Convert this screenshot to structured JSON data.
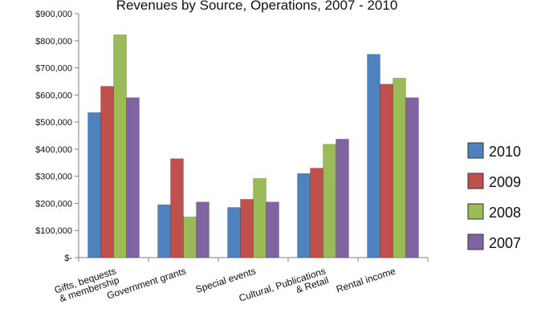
{
  "chart_data": {
    "type": "bar",
    "title": "Revenues by Source, Operations, 2007 - 2010",
    "xlabel": "",
    "ylabel": "",
    "ylim": [
      0,
      900000
    ],
    "y_ticks": [
      {
        "value": 0,
        "label": "$-"
      },
      {
        "value": 100000,
        "label": "$100,000"
      },
      {
        "value": 200000,
        "label": "$200,000"
      },
      {
        "value": 300000,
        "label": "$300,000"
      },
      {
        "value": 400000,
        "label": "$400,000"
      },
      {
        "value": 500000,
        "label": "$500,000"
      },
      {
        "value": 600000,
        "label": "$600,000"
      },
      {
        "value": 700000,
        "label": "$700,000"
      },
      {
        "value": 800000,
        "label": "$800,000"
      },
      {
        "value": 900000,
        "label": "$900,000"
      }
    ],
    "categories": [
      [
        "Gifts, bequests",
        "& membership"
      ],
      [
        "Government grants"
      ],
      [
        "Special events"
      ],
      [
        "Cultural, Publications",
        "& Retail"
      ],
      [
        "Rental income"
      ]
    ],
    "series": [
      {
        "name": "2010",
        "color": "#4f81bd",
        "values": [
          535000,
          195000,
          185000,
          310000,
          750000
        ]
      },
      {
        "name": "2009",
        "color": "#c0504d",
        "values": [
          632000,
          365000,
          215000,
          330000,
          640000
        ]
      },
      {
        "name": "2008",
        "color": "#9bbb59",
        "values": [
          822000,
          150000,
          292000,
          418000,
          662000
        ]
      },
      {
        "name": "2007",
        "color": "#8064a2",
        "values": [
          590000,
          205000,
          205000,
          437000,
          590000
        ]
      }
    ],
    "grid": false,
    "legend_position": "right",
    "axis_color": "#7f7f7f"
  }
}
